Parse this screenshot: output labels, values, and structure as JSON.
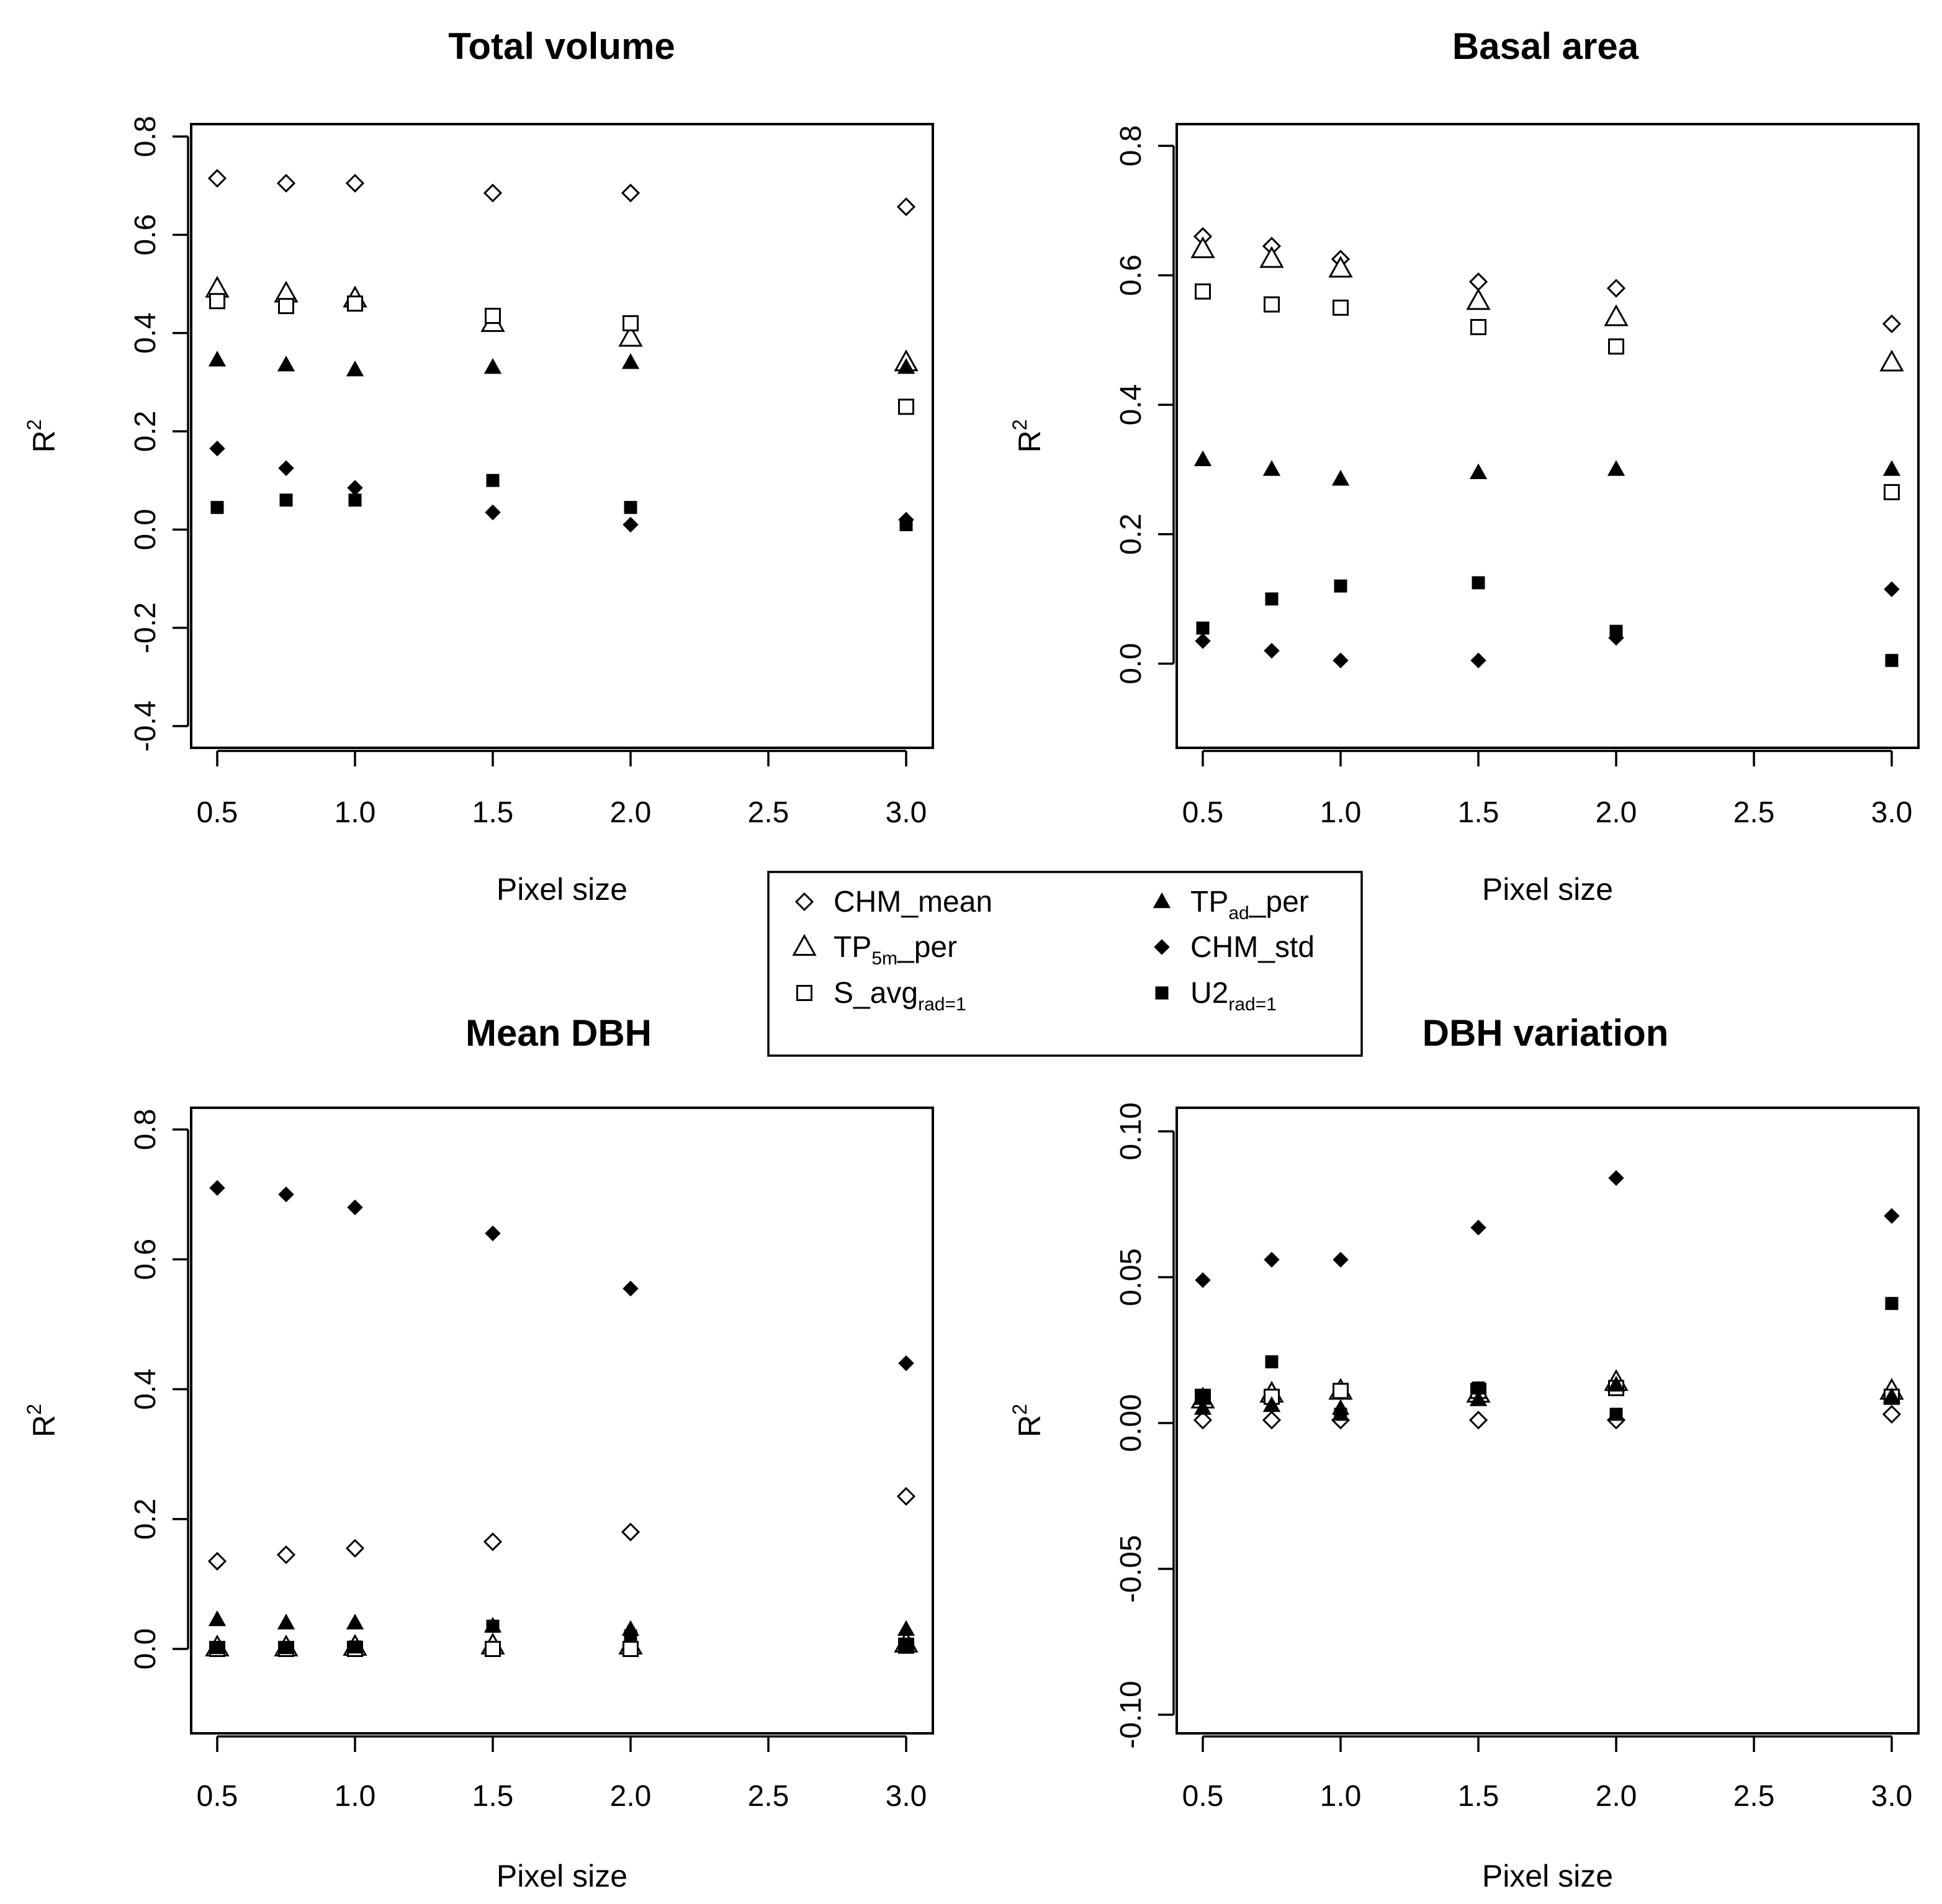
{
  "chart_data": [
    {
      "type": "scatter",
      "title": "Total volume",
      "xlabel": "Pixel size",
      "ylabel": "R",
      "ylabel_sup": "2",
      "x": [
        0.5,
        0.75,
        1.0,
        1.5,
        2.0,
        3.0
      ],
      "xlim": [
        0.5,
        3.0
      ],
      "ylim": [
        -0.4,
        0.8
      ],
      "xticks": [
        "0.5",
        "1.0",
        "1.5",
        "2.0",
        "2.5",
        "3.0"
      ],
      "yticks": [
        "-0.4",
        "-0.2",
        "0.0",
        "0.2",
        "0.4",
        "0.6",
        "0.8"
      ],
      "series": [
        {
          "key": "chm_mean",
          "values": [
            0.715,
            0.705,
            0.705,
            0.685,
            0.685,
            0.657
          ]
        },
        {
          "key": "tp5m",
          "values": [
            0.49,
            0.48,
            0.47,
            0.42,
            0.39,
            0.34
          ]
        },
        {
          "key": "savg",
          "values": [
            0.465,
            0.455,
            0.46,
            0.435,
            0.42,
            0.25
          ]
        },
        {
          "key": "tpad",
          "values": [
            0.345,
            0.335,
            0.325,
            0.33,
            0.34,
            0.33
          ]
        },
        {
          "key": "chm_std",
          "values": [
            0.165,
            0.125,
            0.085,
            0.035,
            0.01,
            0.02
          ]
        },
        {
          "key": "u2",
          "values": [
            0.045,
            0.06,
            0.06,
            0.1,
            0.045,
            0.01
          ]
        }
      ]
    },
    {
      "type": "scatter",
      "title": "Basal area",
      "xlabel": "Pixel size",
      "ylabel": "R",
      "ylabel_sup": "2",
      "x": [
        0.5,
        0.75,
        1.0,
        1.5,
        2.0,
        3.0
      ],
      "xlim": [
        0.5,
        3.0
      ],
      "ylim": [
        -0.13,
        0.8
      ],
      "xticks": [
        "0.5",
        "1.0",
        "1.5",
        "2.0",
        "2.5",
        "3.0"
      ],
      "yticks": [
        "0.0",
        "0.2",
        "0.4",
        "0.6",
        "0.8"
      ],
      "series": [
        {
          "key": "chm_mean",
          "values": [
            0.66,
            0.645,
            0.625,
            0.59,
            0.58,
            0.525
          ]
        },
        {
          "key": "tp5m",
          "values": [
            0.64,
            0.625,
            0.61,
            0.56,
            0.535,
            0.465
          ]
        },
        {
          "key": "savg",
          "values": [
            0.575,
            0.555,
            0.55,
            0.52,
            0.49,
            0.265
          ]
        },
        {
          "key": "tpad",
          "values": [
            0.315,
            0.3,
            0.285,
            0.295,
            0.3,
            0.3
          ]
        },
        {
          "key": "chm_std",
          "values": [
            0.035,
            0.02,
            0.005,
            0.005,
            0.04,
            0.115
          ]
        },
        {
          "key": "u2",
          "values": [
            0.055,
            0.1,
            0.12,
            0.125,
            0.05,
            0.005
          ]
        }
      ]
    },
    {
      "type": "scatter",
      "title": "Mean DBH",
      "xlabel": "Pixel size",
      "ylabel": "R",
      "ylabel_sup": "2",
      "x": [
        0.5,
        0.75,
        1.0,
        1.5,
        2.0,
        3.0
      ],
      "xlim": [
        0.5,
        3.0
      ],
      "ylim": [
        -0.13,
        0.8
      ],
      "xticks": [
        "0.5",
        "1.0",
        "1.5",
        "2.0",
        "2.5",
        "3.0"
      ],
      "yticks": [
        "0.0",
        "0.2",
        "0.4",
        "0.6",
        "0.8"
      ],
      "series": [
        {
          "key": "chm_mean",
          "values": [
            0.135,
            0.145,
            0.155,
            0.165,
            0.18,
            0.235
          ]
        },
        {
          "key": "tp5m",
          "values": [
            0.002,
            0.002,
            0.003,
            0.005,
            0.005,
            0.008
          ]
        },
        {
          "key": "savg",
          "values": [
            0.0,
            0.0,
            0.0,
            0.0,
            0.0,
            0.005
          ]
        },
        {
          "key": "tpad",
          "values": [
            0.045,
            0.04,
            0.04,
            0.035,
            0.03,
            0.03
          ]
        },
        {
          "key": "chm_std",
          "values": [
            0.71,
            0.7,
            0.68,
            0.64,
            0.555,
            0.44
          ]
        },
        {
          "key": "u2",
          "values": [
            0.002,
            0.002,
            0.003,
            0.035,
            0.02,
            0.005
          ]
        }
      ]
    },
    {
      "type": "scatter",
      "title": "DBH variation",
      "xlabel": "Pixel size",
      "ylabel": "R",
      "ylabel_sup": "2",
      "x": [
        0.5,
        0.75,
        1.0,
        1.5,
        2.0,
        3.0
      ],
      "xlim": [
        0.5,
        3.0
      ],
      "ylim": [
        -0.1,
        0.1
      ],
      "xticks": [
        "0.5",
        "1.0",
        "1.5",
        "2.0",
        "2.5",
        "3.0"
      ],
      "yticks": [
        "-0.10",
        "-0.05",
        "0.00",
        "0.05",
        "0.10"
      ],
      "series": [
        {
          "key": "chm_mean",
          "values": [
            0.001,
            0.001,
            0.001,
            0.001,
            0.001,
            0.003
          ]
        },
        {
          "key": "tp5m",
          "values": [
            0.008,
            0.01,
            0.011,
            0.01,
            0.014,
            0.011
          ]
        },
        {
          "key": "savg",
          "values": [
            0.009,
            0.009,
            0.011,
            0.011,
            0.012,
            0.009
          ]
        },
        {
          "key": "tpad",
          "values": [
            0.005,
            0.006,
            0.005,
            0.008,
            0.013,
            0.009
          ]
        },
        {
          "key": "chm_std",
          "values": [
            0.049,
            0.056,
            0.056,
            0.067,
            0.084,
            0.071
          ]
        },
        {
          "key": "u2",
          "values": [
            0.009,
            0.021,
            0.003,
            0.012,
            0.003,
            0.041
          ]
        }
      ]
    }
  ],
  "legend": {
    "items": [
      {
        "key": "chm_mean",
        "base": "CHM_mean",
        "sub": "",
        "tail": ""
      },
      {
        "key": "tp5m",
        "base": "TP",
        "sub": "5m",
        "tail": "_per"
      },
      {
        "key": "savg",
        "base": "S_avg",
        "sub": "rad=1",
        "tail": ""
      },
      {
        "key": "tpad",
        "base": "TP",
        "sub": "ad",
        "tail": "_per"
      },
      {
        "key": "chm_std",
        "base": "CHM_std",
        "sub": "",
        "tail": ""
      },
      {
        "key": "u2",
        "base": "U2",
        "sub": "rad=1",
        "tail": ""
      }
    ]
  }
}
